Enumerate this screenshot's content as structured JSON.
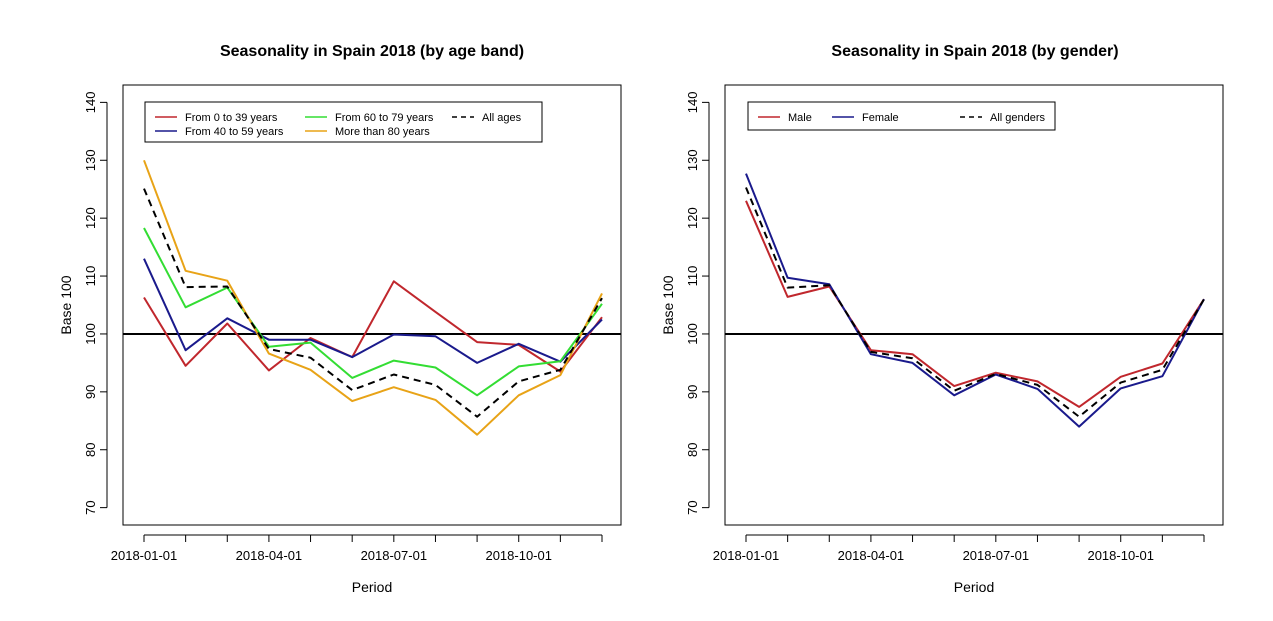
{
  "chart_data": [
    {
      "type": "line",
      "title": "Seasonality in Spain 2018 (by age band)",
      "xlabel": "Period",
      "ylabel": "Base 100",
      "ylim": [
        67,
        143
      ],
      "yticks": [
        70,
        80,
        90,
        100,
        110,
        120,
        130,
        140
      ],
      "x": [
        "2018-01-01",
        "2018-02-01",
        "2018-03-01",
        "2018-04-01",
        "2018-05-01",
        "2018-06-01",
        "2018-07-01",
        "2018-08-01",
        "2018-09-01",
        "2018-10-01",
        "2018-11-01",
        "2018-12-01"
      ],
      "xtick_labels": [
        "2018-01-01",
        "2018-04-01",
        "2018-07-01",
        "2018-10-01"
      ],
      "reference_line": 100,
      "grid": false,
      "legend": "top-left",
      "series": [
        {
          "name": "From 0 to 39 years",
          "color": "#c0272d",
          "dashed": false,
          "values": [
            106.3,
            94.5,
            101.8,
            93.7,
            99.3,
            96.0,
            109.1,
            103.8,
            98.6,
            98.1,
            93.5,
            102.9
          ]
        },
        {
          "name": "From 40 to 59 years",
          "color": "#1a1a8c",
          "dashed": false,
          "values": [
            113.0,
            97.2,
            102.7,
            99.0,
            99.0,
            96.0,
            99.9,
            99.6,
            95.0,
            98.3,
            95.2,
            102.5
          ]
        },
        {
          "name": "From 60 to 79 years",
          "color": "#33dd33",
          "dashed": false,
          "values": [
            118.3,
            104.6,
            108.0,
            97.8,
            98.5,
            92.4,
            95.4,
            94.2,
            89.4,
            94.4,
            95.3,
            105.2
          ]
        },
        {
          "name": "More than 80 years",
          "color": "#e8a317",
          "dashed": false,
          "values": [
            130.0,
            110.9,
            109.2,
            96.6,
            93.8,
            88.4,
            90.8,
            88.6,
            82.6,
            89.4,
            92.9,
            107.0
          ]
        },
        {
          "name": "All ages",
          "color": "#000000",
          "dashed": true,
          "values": [
            125.1,
            108.1,
            108.2,
            97.4,
            95.9,
            90.3,
            93.0,
            91.2,
            85.7,
            91.8,
            93.8,
            106.2
          ]
        }
      ]
    },
    {
      "type": "line",
      "title": "Seasonality in Spain 2018 (by gender)",
      "xlabel": "Period",
      "ylabel": "Base 100",
      "ylim": [
        67,
        143
      ],
      "yticks": [
        70,
        80,
        90,
        100,
        110,
        120,
        130,
        140
      ],
      "x": [
        "2018-01-01",
        "2018-02-01",
        "2018-03-01",
        "2018-04-01",
        "2018-05-01",
        "2018-06-01",
        "2018-07-01",
        "2018-08-01",
        "2018-09-01",
        "2018-10-01",
        "2018-11-01",
        "2018-12-01"
      ],
      "xtick_labels": [
        "2018-01-01",
        "2018-04-01",
        "2018-07-01",
        "2018-10-01"
      ],
      "reference_line": 100,
      "grid": false,
      "legend": "top-left",
      "series": [
        {
          "name": "Male",
          "color": "#c0272d",
          "dashed": false,
          "values": [
            123.0,
            106.4,
            108.2,
            97.2,
            96.5,
            91.0,
            93.3,
            91.8,
            87.4,
            92.6,
            94.9,
            106.0
          ]
        },
        {
          "name": "Female",
          "color": "#1a1a8c",
          "dashed": false,
          "values": [
            127.7,
            109.7,
            108.6,
            96.5,
            95.0,
            89.4,
            93.0,
            90.5,
            84.0,
            90.6,
            92.7,
            106.0
          ]
        },
        {
          "name": "All genders",
          "color": "#000000",
          "dashed": true,
          "values": [
            125.3,
            108.0,
            108.4,
            96.9,
            95.8,
            90.2,
            93.1,
            91.2,
            85.7,
            91.6,
            93.8,
            106.0
          ]
        }
      ]
    }
  ]
}
